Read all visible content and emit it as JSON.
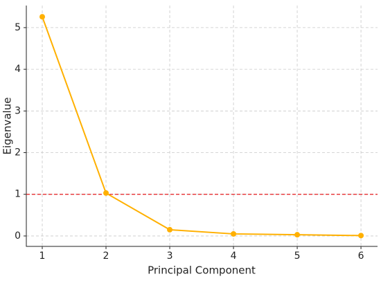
{
  "chart_data": {
    "type": "line",
    "x_label": "Principal Component",
    "y_label": "Eigenvalue",
    "x": [
      1,
      2,
      3,
      4,
      5,
      6
    ],
    "series": [
      {
        "color": "#ffb000",
        "values": [
          5.26,
          1.03,
          0.15,
          0.05,
          0.03,
          0.01
        ]
      }
    ],
    "hline": {
      "value": 1,
      "color": "#e41a1c"
    },
    "xlim": [
      0.75,
      6.26
    ],
    "xticks": [
      1,
      2,
      3,
      4,
      5,
      6
    ],
    "ylim": [
      -0.25,
      5.53
    ],
    "yticks": [
      0,
      1,
      2,
      3,
      4,
      5
    ],
    "grid": true
  }
}
